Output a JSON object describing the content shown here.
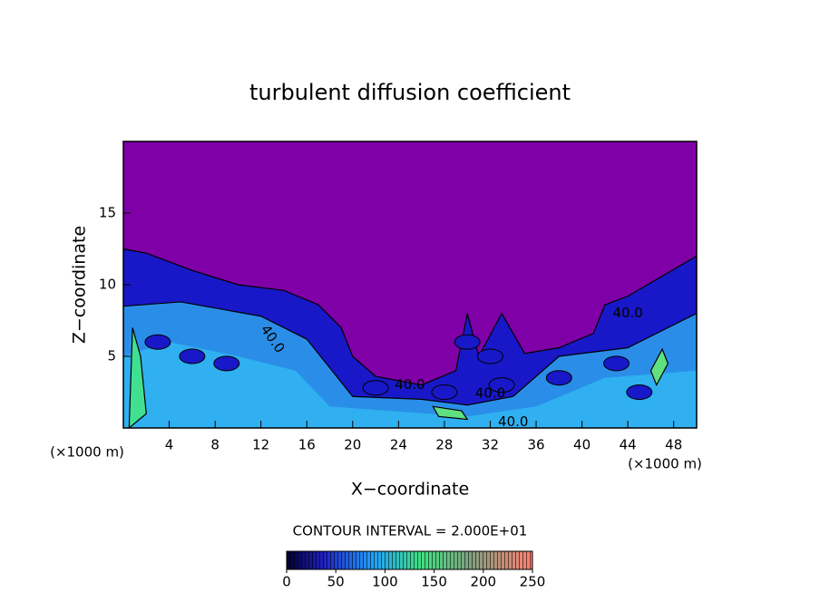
{
  "chart_data": {
    "type": "contour",
    "title": "turbulent diffusion coefficient",
    "x_label": "X−coordinate",
    "y_label": "Z−coordinate",
    "x_unit": "(×1000 m)",
    "x_unit_right": "(×1000 m)",
    "xlim": [
      0,
      50
    ],
    "xticks": [
      4,
      8,
      12,
      16,
      20,
      24,
      28,
      32,
      36,
      40,
      44,
      48
    ],
    "ylim": [
      0,
      20
    ],
    "yticks": [
      5,
      10,
      15
    ],
    "contour_interval_label": "CONTOUR INTERVAL = 2.000E+01",
    "contour_labels": [
      "40.0",
      "40.0",
      "40.0",
      "40.0",
      "40.0"
    ],
    "colorbar": {
      "lim": [
        0,
        250
      ],
      "ticks": [
        0,
        50,
        100,
        150,
        200,
        250
      ]
    }
  }
}
